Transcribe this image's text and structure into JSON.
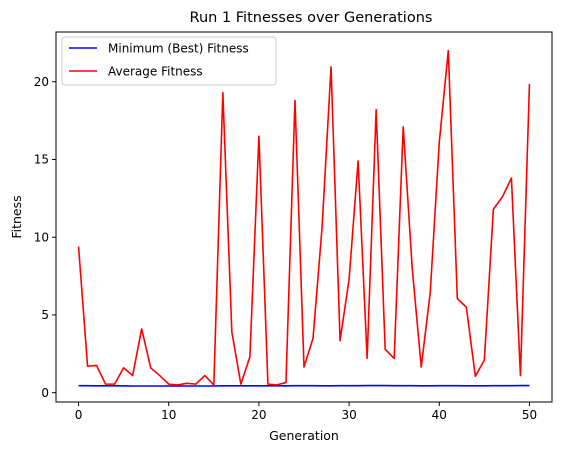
{
  "chart_data": {
    "type": "line",
    "title": "Run 1 Fitnesses over Generations",
    "xlabel": "Generation",
    "ylabel": "Fitness",
    "xlim": [
      -2.5,
      52.5
    ],
    "ylim": [
      -0.6,
      23.2
    ],
    "xticks": [
      0,
      10,
      20,
      30,
      40,
      50
    ],
    "yticks": [
      0,
      5,
      10,
      15,
      20
    ],
    "grid": false,
    "legend_position": "top-left",
    "x": [
      0,
      1,
      2,
      3,
      4,
      5,
      6,
      7,
      8,
      9,
      10,
      11,
      12,
      13,
      14,
      15,
      16,
      17,
      18,
      19,
      20,
      21,
      22,
      23,
      24,
      25,
      26,
      27,
      28,
      29,
      30,
      31,
      32,
      33,
      34,
      35,
      36,
      37,
      38,
      39,
      40,
      41,
      42,
      43,
      44,
      45,
      46,
      47,
      48,
      49,
      50
    ],
    "series": [
      {
        "name": "Minimum (Best) Fitness",
        "color": "#0000ff",
        "values": [
          0.45,
          0.45,
          0.44,
          0.44,
          0.44,
          0.44,
          0.43,
          0.43,
          0.43,
          0.43,
          0.43,
          0.43,
          0.43,
          0.43,
          0.43,
          0.43,
          0.44,
          0.44,
          0.44,
          0.44,
          0.44,
          0.44,
          0.44,
          0.44,
          0.45,
          0.45,
          0.45,
          0.44,
          0.44,
          0.45,
          0.45,
          0.45,
          0.46,
          0.46,
          0.46,
          0.45,
          0.45,
          0.45,
          0.44,
          0.44,
          0.45,
          0.45,
          0.45,
          0.44,
          0.44,
          0.44,
          0.45,
          0.45,
          0.45,
          0.46,
          0.46
        ]
      },
      {
        "name": "Average Fitness",
        "color": "#ff0000",
        "values": [
          9.4,
          1.7,
          1.75,
          0.55,
          0.55,
          1.6,
          1.1,
          4.1,
          1.6,
          1.1,
          0.55,
          0.5,
          0.6,
          0.55,
          1.1,
          0.5,
          19.3,
          3.9,
          0.55,
          2.3,
          16.5,
          0.55,
          0.5,
          0.65,
          18.8,
          1.65,
          3.5,
          10.6,
          20.95,
          3.35,
          7.3,
          14.9,
          2.2,
          18.2,
          2.8,
          2.2,
          17.1,
          8.0,
          1.65,
          6.45,
          16.1,
          22.0,
          6.05,
          5.5,
          1.05,
          2.1,
          11.8,
          12.6,
          13.8,
          1.1,
          19.85
        ]
      }
    ]
  }
}
